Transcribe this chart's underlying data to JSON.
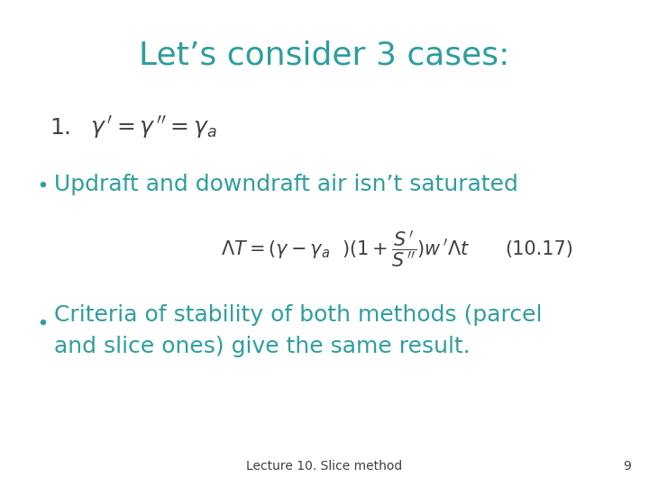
{
  "title": "Let’s consider 3 cases:",
  "title_color": "#2E9E9E",
  "title_fontsize": 26,
  "background_color": "#FFFFFF",
  "teal_color": "#2E9E9E",
  "dark_color": "#404040",
  "footer_text": "Lecture 10. Slice method",
  "footer_page": "9",
  "bullet1": "Updraft and downdraft air isn’t saturated",
  "bullet2_line1": "Criteria of stability of both methods (parcel",
  "bullet2_line2": "and slice ones) give the same result.",
  "eq_label": "(10.17)"
}
